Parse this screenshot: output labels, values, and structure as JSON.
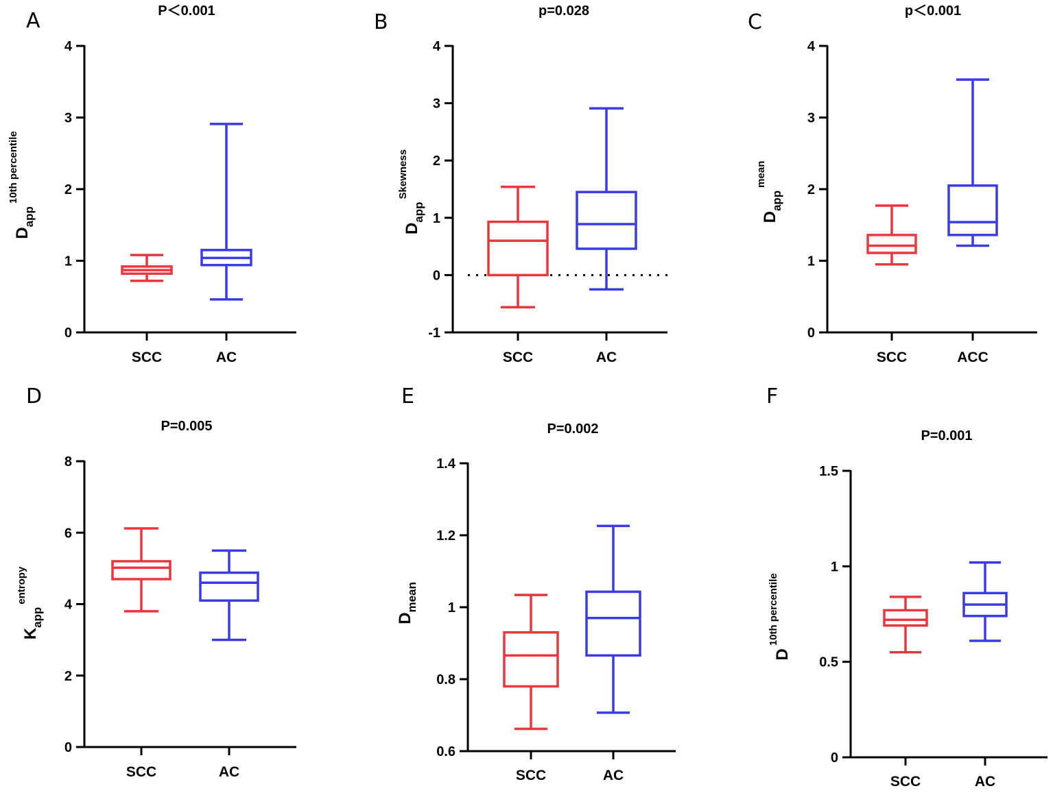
{
  "chart_data": [
    {
      "panel": "A",
      "type": "box",
      "title": "P＜0.001",
      "ylabel": {
        "main": "D",
        "sub": "app",
        "sup": "10th percentile"
      },
      "ylim": [
        0,
        4
      ],
      "yticks": [
        0,
        1,
        2,
        3,
        4
      ],
      "ticklabels": [
        "0",
        "1",
        "2",
        "3",
        "4"
      ],
      "categories": [
        "SCC",
        "AC"
      ],
      "series": [
        {
          "name": "SCC",
          "color": "#e8373d",
          "min": 0.72,
          "q1": 0.82,
          "median": 0.87,
          "q3": 0.92,
          "max": 1.08
        },
        {
          "name": "AC",
          "color": "#3a3ae6",
          "min": 0.46,
          "q1": 0.94,
          "median": 1.04,
          "q3": 1.15,
          "max": 2.91
        }
      ]
    },
    {
      "panel": "B",
      "type": "box",
      "title": "p=0.028",
      "ylabel": {
        "main": "D",
        "sub": "app",
        "sup": "Skewness"
      },
      "ylim": [
        -1,
        4
      ],
      "yticks": [
        -1,
        0,
        1,
        2,
        3,
        4
      ],
      "ticklabels": [
        "-1",
        "0",
        "1",
        "2",
        "3",
        "4"
      ],
      "reference_line": 0,
      "categories": [
        "SCC",
        "AC"
      ],
      "series": [
        {
          "name": "SCC",
          "color": "#e8373d",
          "min": -0.56,
          "q1": 0.0,
          "median": 0.6,
          "q3": 0.93,
          "max": 1.54
        },
        {
          "name": "AC",
          "color": "#3a3ae6",
          "min": -0.25,
          "q1": 0.46,
          "median": 0.89,
          "q3": 1.45,
          "max": 2.91
        }
      ]
    },
    {
      "panel": "C",
      "type": "box",
      "title": "p＜0.001",
      "ylabel": {
        "main": "D",
        "sub": "app",
        "sup": "mean"
      },
      "ylim": [
        0,
        4
      ],
      "yticks": [
        0,
        1,
        2,
        3,
        4
      ],
      "ticklabels": [
        "0",
        "1",
        "2",
        "3",
        "4"
      ],
      "categories": [
        "SCC",
        "ACC"
      ],
      "series": [
        {
          "name": "SCC",
          "color": "#e8373d",
          "min": 0.95,
          "q1": 1.11,
          "median": 1.21,
          "q3": 1.36,
          "max": 1.77
        },
        {
          "name": "ACC",
          "color": "#3a3ae6",
          "min": 1.21,
          "q1": 1.36,
          "median": 1.54,
          "q3": 2.05,
          "max": 3.53
        }
      ]
    },
    {
      "panel": "D",
      "type": "box",
      "title": "P=0.005",
      "ylabel": {
        "main": "K",
        "sub": "app",
        "sup": "entropy"
      },
      "ylim": [
        0,
        8
      ],
      "yticks": [
        0,
        2,
        4,
        6,
        8
      ],
      "ticklabels": [
        "0",
        "2",
        "4",
        "6",
        "8"
      ],
      "categories": [
        "SCC",
        "AC"
      ],
      "series": [
        {
          "name": "SCC",
          "color": "#e8373d",
          "min": 3.8,
          "q1": 4.7,
          "median": 5.02,
          "q3": 5.2,
          "max": 6.12
        },
        {
          "name": "AC",
          "color": "#3a3ae6",
          "min": 3.0,
          "q1": 4.1,
          "median": 4.6,
          "q3": 4.88,
          "max": 5.5
        }
      ]
    },
    {
      "panel": "E",
      "type": "box",
      "title": "P=0.002",
      "ylabel": {
        "main": "D",
        "sub": "mean",
        "sup": ""
      },
      "ylim": [
        0.6,
        1.4
      ],
      "yticks": [
        0.6,
        0.8,
        1.0,
        1.2,
        1.4
      ],
      "ticklabels": [
        "0.6",
        "0.8",
        "1",
        "1.2",
        "1.4"
      ],
      "categories": [
        "SCC",
        "AC"
      ],
      "series": [
        {
          "name": "SCC",
          "color": "#e8373d",
          "min": 0.662,
          "q1": 0.78,
          "median": 0.866,
          "q3": 0.93,
          "max": 1.034
        },
        {
          "name": "AC",
          "color": "#3a3ae6",
          "min": 0.707,
          "q1": 0.866,
          "median": 0.97,
          "q3": 1.043,
          "max": 1.226
        }
      ]
    },
    {
      "panel": "F",
      "type": "box",
      "title": "P=0.001",
      "ylabel": {
        "main": "D",
        "sub": "",
        "sup": "10th percentile"
      },
      "ylim": [
        0,
        1.5
      ],
      "yticks": [
        0,
        0.5,
        1.0,
        1.5
      ],
      "ticklabels": [
        "0",
        "0.5",
        "1",
        "1.5"
      ],
      "categories": [
        "SCC",
        "AC"
      ],
      "series": [
        {
          "name": "SCC",
          "color": "#e8373d",
          "min": 0.55,
          "q1": 0.69,
          "median": 0.72,
          "q3": 0.77,
          "max": 0.84
        },
        {
          "name": "AC",
          "color": "#3a3ae6",
          "min": 0.61,
          "q1": 0.74,
          "median": 0.8,
          "q3": 0.86,
          "max": 1.02
        }
      ]
    }
  ]
}
